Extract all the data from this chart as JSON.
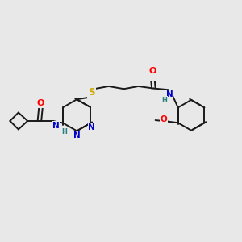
{
  "bg_color": "#e8e8e8",
  "bond_color": "#1a1a1a",
  "bond_width": 1.4,
  "atom_colors": {
    "O": "#ff0000",
    "N": "#0000cc",
    "S": "#ccaa00",
    "C": "#1a1a1a",
    "H": "#2a8080"
  },
  "font_size": 7.0,
  "figsize": [
    3.0,
    3.0
  ],
  "dpi": 100
}
